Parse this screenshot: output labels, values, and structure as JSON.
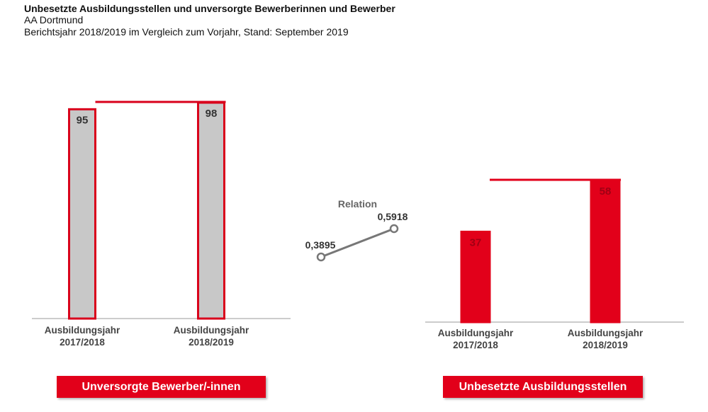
{
  "header": {
    "title": "Unbesetzte Ausbildungsstellen und unversorgte Bewerberinnen und Bewerber",
    "lines": [
      "AA Dortmund",
      "Berichtsjahr 2018/2019 im Vergleich zum Vorjahr, Stand: September 2019"
    ]
  },
  "chart_data": [
    {
      "type": "bar",
      "caption": "Unversorgte Bewerber/-innen",
      "categories": [
        "Ausbildungsjahr 2017/2018",
        "Ausbildungsjahr 2018/2019"
      ],
      "values": [
        95,
        98
      ],
      "color": "#c8c8c8",
      "edge_color": "#d9001b",
      "label_color": "#333333",
      "ylim": [
        0,
        98
      ]
    },
    {
      "type": "line",
      "title": "Relation",
      "categories": [
        "Ausbildungsjahr 2017/2018",
        "Ausbildungsjahr 2018/2019"
      ],
      "values": [
        0.3895,
        0.5918
      ],
      "value_labels": [
        "0,3895",
        "0,5918"
      ],
      "color": "#777777",
      "ylim": [
        0.3895,
        0.5918
      ]
    },
    {
      "type": "bar",
      "caption": "Unbesetzte Ausbildungsstellen",
      "categories": [
        "Ausbildungsjahr 2017/2018",
        "Ausbildungsjahr 2018/2019"
      ],
      "values": [
        37,
        58
      ],
      "color": "#e2001a",
      "edge_color": "#e2001a",
      "label_color": "#a00014",
      "ylim": [
        0,
        58
      ]
    }
  ]
}
